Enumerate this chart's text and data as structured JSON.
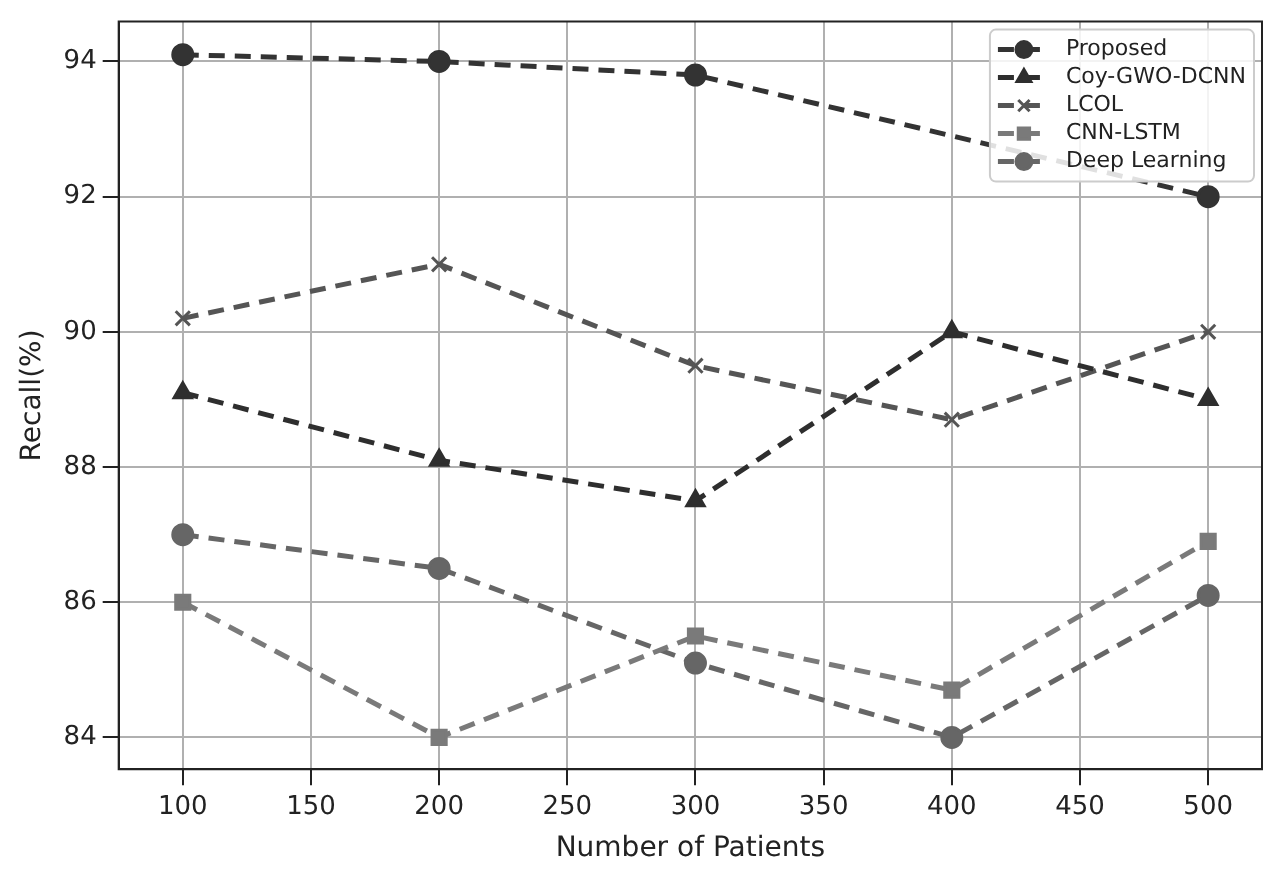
{
  "chart_data": {
    "type": "line",
    "xlabel": "Number of Patients",
    "ylabel": "Recall(%)",
    "x": [
      100,
      200,
      300,
      400,
      500
    ],
    "xlim": [
      75,
      521
    ],
    "xticks": [
      100,
      150,
      200,
      250,
      300,
      350,
      400,
      450,
      500
    ],
    "ylim": [
      83.53,
      94.59
    ],
    "yticks": [
      84,
      86,
      88,
      90,
      92,
      94
    ],
    "grid": true,
    "legend": "top right",
    "line_style": "dashed",
    "series": [
      {
        "name": "Proposed",
        "color": "#333333",
        "marker": "circle",
        "values": [
          94.1,
          94.0,
          93.8,
          null,
          92.0
        ]
      },
      {
        "name": "Coy-GWO-DCNN",
        "color": "#2e2e2e",
        "marker": "triangle",
        "values": [
          89.1,
          88.1,
          87.5,
          90.0,
          89.0
        ]
      },
      {
        "name": "LCOL",
        "color": "#555555",
        "marker": "cross",
        "values": [
          90.2,
          91.0,
          89.5,
          88.7,
          90.0
        ]
      },
      {
        "name": "CNN-LSTM",
        "color": "#7a7a7a",
        "marker": "square",
        "values": [
          86.0,
          84.0,
          85.5,
          84.7,
          86.9
        ]
      },
      {
        "name": "Deep Learning",
        "color": "#666666",
        "marker": "circle",
        "values": [
          87.0,
          86.5,
          85.1,
          84.0,
          86.1
        ]
      }
    ]
  }
}
